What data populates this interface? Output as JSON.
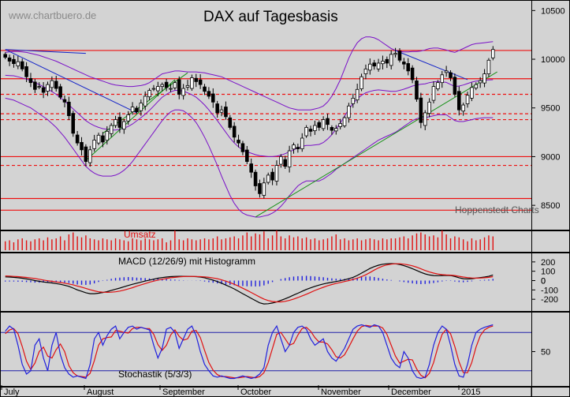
{
  "header": {
    "watermark": "www.chartbuero.de",
    "title": "DAX auf Tagesbasis",
    "source": "Hoppenstedt Charts"
  },
  "colors": {
    "background": "#d3d3d3",
    "candle_body": "#000000",
    "level_lines": "#ee1111",
    "bollinger_band": "#7a10c8",
    "downtrend_line": "#1424c8",
    "uptrend_channel": "#169016",
    "volume_bars": "#e01010",
    "macd_line": "#000000",
    "signal_line": "#e01010",
    "histogram": "#2020dd",
    "stoch_k": "#2020dd",
    "stoch_d": "#e01010",
    "stoch_levels": "#2020aa"
  },
  "chart_data": {
    "type": "candlestick",
    "x": {
      "labels": [
        "July",
        "August",
        "September",
        "October",
        "November",
        "December",
        "2015"
      ]
    },
    "price_panel": {
      "ylim": [
        8250,
        10600
      ],
      "y_ticks": [
        10500,
        10000,
        9500,
        9000,
        8500
      ],
      "support_resistance_solid": [
        10090,
        9800,
        9000,
        8570,
        8450
      ],
      "support_resistance_dashed": [
        9640,
        9440,
        9380,
        8910
      ],
      "closes": [
        10020,
        9980,
        9955,
        9975,
        9900,
        9820,
        9760,
        9690,
        9720,
        9660,
        9740,
        9780,
        9700,
        9610,
        9560,
        9420,
        9240,
        9140,
        9070,
        8950,
        9070,
        9170,
        9220,
        9150,
        9260,
        9320,
        9380,
        9300,
        9360,
        9430,
        9510,
        9460,
        9550,
        9620,
        9680,
        9700,
        9720,
        9740,
        9710,
        9700,
        9760,
        9640,
        9700,
        9730,
        9810,
        9770,
        9740,
        9670,
        9620,
        9560,
        9450,
        9480,
        9410,
        9300,
        9200,
        9140,
        9050,
        8950,
        8840,
        8700,
        8620,
        8730,
        8810,
        8760,
        8910,
        9000,
        8900,
        9060,
        9120,
        9080,
        9190,
        9300,
        9260,
        9320,
        9300,
        9380,
        9330,
        9270,
        9290,
        9340,
        9400,
        9520,
        9600,
        9690,
        9820,
        9900,
        9950,
        9930,
        9960,
        9980,
        9960,
        10050,
        10060,
        9990,
        9950,
        9880,
        9790,
        9590,
        9350,
        9450,
        9560,
        9720,
        9760,
        9840,
        9880,
        9810,
        9640,
        9480,
        9530,
        9630,
        9710,
        9740,
        9780,
        9850,
        9990,
        10100
      ],
      "bollinger_upper": [
        10070,
        10075,
        10080,
        10080,
        10075,
        10070,
        10060,
        10050,
        10040,
        10025,
        10010,
        9995,
        9980,
        9960,
        9940,
        9920,
        9900,
        9880,
        9860,
        9840,
        9820,
        9805,
        9790,
        9775,
        9760,
        9745,
        9735,
        9730,
        9725,
        9720,
        9720,
        9725,
        9730,
        9740,
        9760,
        9790,
        9820,
        9850,
        9860,
        9870,
        9880,
        9880,
        9875,
        9870,
        9870,
        9870,
        9865,
        9860,
        9850,
        9840,
        9830,
        9820,
        9800,
        9780,
        9760,
        9740,
        9720,
        9700,
        9680,
        9660,
        9640,
        9620,
        9600,
        9580,
        9560,
        9540,
        9520,
        9500,
        9490,
        9480,
        9480,
        9480,
        9480,
        9490,
        9500,
        9520,
        9560,
        9620,
        9700,
        9790,
        9900,
        10010,
        10100,
        10170,
        10210,
        10230,
        10230,
        10220,
        10200,
        10170,
        10140,
        10110,
        10090,
        10080,
        10075,
        10075,
        10080,
        10080,
        10085,
        10095,
        10110,
        10115,
        10115,
        10105,
        10095,
        10080,
        10070,
        10090,
        10110,
        10130,
        10150,
        10160,
        10165,
        10170,
        10175,
        10180
      ],
      "bollinger_lower": [
        9600,
        9590,
        9580,
        9560,
        9540,
        9520,
        9500,
        9470,
        9440,
        9410,
        9380,
        9340,
        9300,
        9250,
        9200,
        9140,
        9080,
        9020,
        8960,
        8900,
        8860,
        8830,
        8810,
        8800,
        8800,
        8800,
        8810,
        8830,
        8860,
        8900,
        8950,
        9010,
        9070,
        9130,
        9190,
        9250,
        9310,
        9370,
        9420,
        9460,
        9480,
        9480,
        9470,
        9440,
        9400,
        9350,
        9280,
        9200,
        9110,
        9010,
        8910,
        8800,
        8700,
        8600,
        8520,
        8460,
        8420,
        8400,
        8390,
        8380,
        8380,
        8390,
        8400,
        8420,
        8450,
        8490,
        8540,
        8600,
        8650,
        8700,
        8730,
        8750,
        8750,
        8750,
        8750,
        8770,
        8800,
        8830,
        8870,
        8900,
        8930,
        8960,
        8990,
        9020,
        9050,
        9080,
        9110,
        9140,
        9170,
        9190,
        9210,
        9230,
        9250,
        9280,
        9310,
        9340,
        9370,
        9390,
        9400,
        9400,
        9410,
        9420,
        9430,
        9430,
        9430,
        9400,
        9370,
        9360,
        9360,
        9370,
        9380,
        9390,
        9395,
        9400,
        9400,
        9400
      ]
    },
    "volume_panel": {
      "label": "Umsatz",
      "values": [
        45,
        50,
        40,
        55,
        60,
        50,
        45,
        55,
        60,
        50,
        65,
        55,
        60,
        70,
        50,
        80,
        90,
        70,
        65,
        75,
        60,
        55,
        50,
        60,
        55,
        50,
        60,
        55,
        50,
        45,
        60,
        55,
        50,
        60,
        55,
        50,
        55,
        60,
        40,
        50,
        100,
        55,
        50,
        60,
        55,
        50,
        55,
        60,
        55,
        60,
        70,
        55,
        60,
        65,
        70,
        60,
        75,
        90,
        70,
        85,
        80,
        95,
        60,
        75,
        100,
        70,
        60,
        75,
        65,
        70,
        60,
        65,
        55,
        60,
        50,
        55,
        60,
        70,
        80,
        55,
        60,
        50,
        55,
        60,
        50,
        55,
        60,
        55,
        50,
        60,
        55,
        60,
        60,
        65,
        70,
        60,
        75,
        85,
        90,
        80,
        70,
        75,
        65,
        100,
        80,
        60,
        70,
        65,
        55,
        45,
        60,
        50,
        55,
        65,
        75,
        70
      ],
      "max": 100
    },
    "macd_panel": {
      "label": "MACD (12/26/9) mit Histogramm",
      "ylim": [
        -300,
        300
      ],
      "y_ticks": [
        200,
        100,
        0,
        -100,
        -200
      ],
      "macd": [
        40,
        38,
        35,
        30,
        25,
        18,
        10,
        0,
        -8,
        -15,
        -20,
        -25,
        -32,
        -40,
        -50,
        -62,
        -80,
        -100,
        -115,
        -130,
        -140,
        -140,
        -135,
        -128,
        -118,
        -105,
        -92,
        -80,
        -66,
        -52,
        -40,
        -28,
        -16,
        -5,
        5,
        15,
        25,
        32,
        38,
        42,
        45,
        46,
        46,
        45,
        44,
        42,
        38,
        30,
        18,
        5,
        -10,
        -28,
        -48,
        -68,
        -90,
        -115,
        -140,
        -165,
        -190,
        -215,
        -238,
        -250,
        -248,
        -240,
        -228,
        -212,
        -195,
        -176,
        -155,
        -135,
        -115,
        -95,
        -78,
        -62,
        -48,
        -36,
        -26,
        -18,
        -10,
        -2,
        8,
        20,
        35,
        55,
        80,
        105,
        130,
        150,
        165,
        175,
        180,
        182,
        180,
        172,
        160,
        145,
        128,
        108,
        88,
        72,
        60,
        54,
        52,
        54,
        56,
        54,
        44,
        30,
        20,
        18,
        20,
        26,
        32,
        38,
        46,
        60
      ],
      "signal": [
        50,
        48,
        45,
        42,
        38,
        34,
        28,
        22,
        14,
        6,
        -2,
        -8,
        -14,
        -20,
        -28,
        -36,
        -46,
        -58,
        -70,
        -84,
        -98,
        -110,
        -120,
        -124,
        -126,
        -124,
        -120,
        -112,
        -102,
        -90,
        -76,
        -60,
        -46,
        -32,
        -18,
        -6,
        5,
        14,
        22,
        30,
        35,
        40,
        43,
        44,
        45,
        44,
        42,
        40,
        35,
        28,
        20,
        8,
        -6,
        -22,
        -40,
        -60,
        -82,
        -104,
        -128,
        -152,
        -176,
        -198,
        -214,
        -224,
        -228,
        -228,
        -222,
        -212,
        -198,
        -182,
        -164,
        -146,
        -126,
        -106,
        -88,
        -72,
        -56,
        -42,
        -30,
        -20,
        -10,
        0,
        12,
        26,
        42,
        62,
        86,
        112,
        136,
        155,
        168,
        176,
        180,
        180,
        176,
        168,
        158,
        144,
        126,
        108,
        92,
        80,
        70,
        63,
        60,
        58,
        54,
        46,
        38,
        32,
        28,
        26,
        27,
        30,
        35,
        42
      ],
      "histogram": [
        -10,
        -10,
        -10,
        -12,
        -13,
        -16,
        -18,
        -22,
        -22,
        -21,
        -18,
        -17,
        -18,
        -20,
        -22,
        -26,
        -34,
        -42,
        -45,
        -46,
        -42,
        -30,
        -15,
        -4,
        8,
        19,
        28,
        32,
        36,
        38,
        36,
        32,
        30,
        27,
        23,
        21,
        20,
        18,
        16,
        12,
        10,
        6,
        3,
        1,
        -1,
        -2,
        -4,
        -10,
        -17,
        -23,
        -30,
        -36,
        -42,
        -46,
        -50,
        -55,
        -58,
        -61,
        -62,
        -63,
        -62,
        -52,
        -34,
        -16,
        0,
        16,
        27,
        36,
        43,
        47,
        49,
        51,
        48,
        44,
        40,
        36,
        30,
        24,
        20,
        18,
        18,
        20,
        23,
        29,
        38,
        43,
        44,
        38,
        29,
        20,
        12,
        6,
        0,
        -8,
        -16,
        -23,
        -30,
        -36,
        -38,
        -36,
        -32,
        -26,
        -18,
        -9,
        -4,
        -4,
        -10,
        -16,
        -18,
        -14,
        -8,
        0,
        5,
        8,
        11,
        18
      ]
    },
    "stochastic_panel": {
      "label": "Stochastik (5/3/3)",
      "ylim": [
        0,
        100
      ],
      "y_ticks": [
        50
      ],
      "levels": [
        80,
        20
      ],
      "k": [
        82,
        90,
        85,
        60,
        30,
        15,
        20,
        60,
        70,
        40,
        20,
        60,
        80,
        45,
        25,
        15,
        10,
        12,
        10,
        8,
        30,
        70,
        80,
        60,
        75,
        85,
        90,
        70,
        80,
        88,
        90,
        85,
        88,
        86,
        84,
        60,
        40,
        55,
        85,
        88,
        80,
        55,
        70,
        85,
        90,
        75,
        50,
        30,
        20,
        12,
        10,
        12,
        10,
        8,
        8,
        10,
        12,
        10,
        8,
        10,
        15,
        25,
        60,
        80,
        90,
        70,
        50,
        60,
        80,
        88,
        90,
        85,
        70,
        60,
        65,
        70,
        50,
        40,
        35,
        45,
        55,
        70,
        85,
        90,
        92,
        90,
        88,
        92,
        90,
        80,
        60,
        40,
        30,
        25,
        50,
        40,
        20,
        10,
        8,
        10,
        30,
        60,
        80,
        90,
        85,
        60,
        30,
        12,
        10,
        30,
        60,
        80,
        85,
        88,
        90,
        92
      ],
      "d": [
        78,
        84,
        86,
        78,
        58,
        35,
        22,
        32,
        50,
        57,
        43,
        40,
        53,
        62,
        50,
        28,
        17,
        12,
        11,
        10,
        16,
        36,
        60,
        70,
        72,
        73,
        83,
        82,
        80,
        79,
        86,
        88,
        88,
        86,
        86,
        77,
        61,
        52,
        60,
        76,
        84,
        74,
        68,
        70,
        82,
        83,
        72,
        52,
        33,
        21,
        14,
        11,
        11,
        10,
        9,
        9,
        10,
        11,
        10,
        9,
        11,
        17,
        33,
        55,
        77,
        80,
        70,
        60,
        63,
        76,
        86,
        88,
        82,
        72,
        65,
        65,
        62,
        53,
        42,
        40,
        45,
        57,
        70,
        82,
        89,
        91,
        90,
        90,
        90,
        87,
        77,
        60,
        43,
        32,
        35,
        38,
        37,
        23,
        13,
        9,
        16,
        33,
        57,
        77,
        85,
        78,
        58,
        34,
        17,
        17,
        33,
        57,
        75,
        84,
        88,
        90
      ]
    }
  }
}
